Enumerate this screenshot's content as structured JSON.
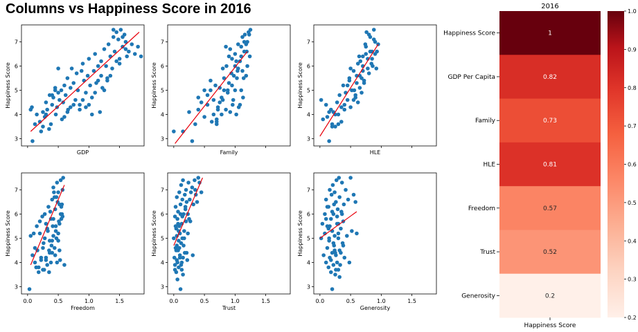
{
  "title": "Columns vs Happiness Score in 2016",
  "chart_data": [
    {
      "type": "scatter",
      "xlabel": "GDP",
      "ylabel": "Happiness Score",
      "xlim": [
        -0.1,
        1.9
      ],
      "ylim": [
        2.7,
        7.7
      ],
      "yticks": [
        3,
        4,
        5,
        6,
        7
      ],
      "xticks": [],
      "fit_line": {
        "x": [
          0.05,
          1.82
        ],
        "y": [
          3.3,
          7.4
        ]
      },
      "x": [
        0.05,
        0.07,
        0.12,
        0.08,
        0.15,
        0.2,
        0.22,
        0.25,
        0.28,
        0.3,
        0.32,
        0.35,
        0.36,
        0.38,
        0.4,
        0.42,
        0.45,
        0.46,
        0.48,
        0.5,
        0.52,
        0.55,
        0.56,
        0.58,
        0.6,
        0.62,
        0.65,
        0.66,
        0.7,
        0.72,
        0.75,
        0.78,
        0.8,
        0.82,
        0.85,
        0.88,
        0.9,
        0.92,
        0.95,
        0.98,
        1.0,
        1.02,
        1.05,
        1.08,
        1.1,
        1.12,
        1.15,
        1.18,
        1.2,
        1.22,
        1.25,
        1.28,
        1.3,
        1.32,
        1.35,
        1.38,
        1.4,
        1.42,
        1.45,
        1.48,
        1.5,
        1.52,
        1.55,
        1.58,
        1.6,
        1.62,
        1.65,
        1.7,
        1.75,
        1.8,
        1.85,
        0.6,
        0.7,
        0.9,
        1.0,
        1.1,
        1.2,
        1.3,
        0.4,
        0.5,
        0.3,
        0.65,
        0.85,
        1.05,
        1.15,
        1.25,
        1.45,
        1.35,
        0.95,
        0.75,
        1.4,
        1.5,
        1.6,
        1.55,
        0.25,
        0.45
      ],
      "y": [
        4.2,
        4.3,
        3.6,
        2.9,
        4.0,
        3.7,
        3.3,
        4.1,
        3.9,
        4.5,
        4.2,
        3.4,
        4.8,
        3.6,
        4.4,
        4.7,
        5.1,
        4.0,
        4.3,
        4.9,
        4.6,
        5.0,
        3.8,
        4.5,
        5.2,
        4.8,
        5.5,
        4.2,
        5.1,
        5.9,
        5.3,
        4.6,
        5.7,
        5.0,
        4.4,
        5.8,
        6.1,
        5.4,
        4.9,
        5.6,
        6.3,
        5.2,
        4.7,
        5.8,
        6.5,
        5.3,
        6.0,
        4.1,
        6.2,
        5.1,
        6.7,
        6.0,
        5.5,
        6.9,
        6.4,
        5.9,
        7.2,
        6.6,
        7.4,
        7.1,
        6.3,
        7.5,
        6.8,
        7.3,
        7.0,
        6.4,
        6.6,
        6.9,
        6.5,
        6.8,
        6.4,
        3.9,
        4.3,
        4.6,
        4.4,
        4.9,
        5.6,
        5.4,
        4.8,
        5.9,
        4.0,
        4.1,
        4.2,
        4.0,
        5.4,
        5.0,
        6.2,
        5.6,
        4.3,
        4.4,
        7.5,
        6.1,
        6.7,
        7.2,
        3.5,
        5.0
      ]
    },
    {
      "type": "scatter",
      "xlabel": "Family",
      "ylabel": "Happiness Score",
      "xlim": [
        -0.1,
        1.9
      ],
      "ylim": [
        2.7,
        7.7
      ],
      "yticks": [
        3,
        4,
        5,
        6,
        7
      ],
      "xticks": [],
      "fit_line": {
        "x": [
          0.02,
          1.2
        ],
        "y": [
          2.8,
          6.6
        ]
      },
      "x": [
        0.0,
        0.15,
        0.3,
        0.35,
        0.4,
        0.45,
        0.5,
        0.55,
        0.6,
        0.62,
        0.65,
        0.68,
        0.7,
        0.72,
        0.75,
        0.78,
        0.8,
        0.82,
        0.85,
        0.86,
        0.88,
        0.9,
        0.92,
        0.94,
        0.95,
        0.96,
        0.98,
        1.0,
        1.0,
        1.02,
        1.04,
        1.05,
        1.06,
        1.08,
        1.1,
        1.1,
        1.12,
        1.14,
        1.15,
        1.16,
        1.18,
        1.2,
        1.2,
        1.22,
        1.24,
        1.25,
        0.5,
        0.55,
        0.6,
        0.7,
        0.75,
        0.8,
        0.85,
        0.9,
        0.95,
        1.0,
        1.05,
        1.1,
        1.15,
        0.65,
        0.7,
        0.78,
        0.88,
        0.92,
        1.02,
        1.08,
        1.12,
        1.18,
        0.72,
        0.82,
        0.97,
        1.03,
        1.13,
        1.19,
        1.23,
        0.4,
        0.25
      ],
      "y": [
        3.3,
        3.3,
        2.9,
        3.6,
        4.2,
        4.5,
        3.9,
        4.4,
        5.0,
        3.7,
        4.6,
        5.2,
        3.6,
        4.3,
        5.1,
        4.0,
        4.6,
        5.5,
        4.2,
        6.0,
        4.9,
        5.3,
        4.1,
        5.7,
        6.3,
        4.4,
        5.6,
        5.0,
        6.5,
        4.0,
        5.8,
        6.9,
        4.3,
        6.2,
        5.0,
        6.8,
        7.2,
        5.5,
        6.6,
        7.3,
        5.6,
        7.0,
        6.0,
        7.4,
        6.4,
        7.5,
        5.0,
        4.8,
        5.4,
        3.7,
        4.5,
        5.9,
        6.8,
        6.4,
        5.2,
        6.0,
        5.9,
        6.4,
        7.0,
        4.0,
        3.8,
        4.7,
        5.0,
        6.7,
        6.2,
        4.4,
        5.8,
        6.9,
        4.2,
        5.0,
        4.6,
        5.5,
        4.7,
        6.6,
        7.3,
        4.7,
        4.1
      ]
    },
    {
      "type": "scatter",
      "xlabel": "HLE",
      "ylabel": "Happiness Score",
      "xlim": [
        -0.1,
        1.9
      ],
      "ylim": [
        2.7,
        7.7
      ],
      "yticks": [
        3,
        4,
        5,
        6,
        7
      ],
      "xticks": [],
      "fit_line": {
        "x": [
          0.0,
          0.95
        ],
        "y": [
          3.1,
          6.9
        ]
      },
      "x": [
        0.02,
        0.05,
        0.1,
        0.12,
        0.15,
        0.18,
        0.2,
        0.22,
        0.25,
        0.28,
        0.3,
        0.32,
        0.35,
        0.38,
        0.4,
        0.42,
        0.45,
        0.48,
        0.5,
        0.52,
        0.55,
        0.58,
        0.6,
        0.62,
        0.65,
        0.68,
        0.7,
        0.72,
        0.75,
        0.78,
        0.8,
        0.82,
        0.85,
        0.88,
        0.9,
        0.92,
        0.95,
        0.55,
        0.6,
        0.65,
        0.7,
        0.75,
        0.8,
        0.85,
        0.5,
        0.45,
        0.4,
        0.62,
        0.66,
        0.72,
        0.76,
        0.82,
        0.86,
        0.9,
        0.58,
        0.68,
        0.74,
        0.84,
        0.25,
        0.3,
        0.35,
        0.15,
        0.2,
        0.78,
        0.88,
        0.93,
        0.7,
        0.64,
        0.56,
        0.48
      ],
      "y": [
        4.6,
        3.8,
        4.4,
        3.9,
        2.9,
        4.2,
        3.6,
        4.1,
        3.5,
        4.5,
        4.0,
        4.8,
        3.7,
        5.2,
        4.4,
        4.9,
        4.6,
        5.5,
        4.3,
        5.0,
        5.8,
        4.7,
        5.3,
        6.1,
        5.6,
        4.9,
        6.4,
        5.4,
        6.8,
        5.9,
        7.3,
        6.6,
        6.3,
        7.5,
        7.0,
        5.9,
        6.9,
        4.6,
        5.6,
        5.1,
        6.0,
        6.5,
        5.7,
        6.6,
        5.9,
        5.2,
        4.2,
        4.5,
        6.2,
        5.3,
        7.4,
        7.2,
        6.0,
        6.5,
        4.8,
        5.5,
        6.9,
        6.1,
        4.0,
        3.6,
        4.3,
        4.1,
        3.5,
        6.3,
        7.1,
        6.6,
        5.8,
        6.4,
        5.0,
        5.4
      ]
    },
    {
      "type": "scatter",
      "xlabel": "Freedom",
      "ylabel": "Happiness Score",
      "xlim": [
        -0.1,
        1.9
      ],
      "ylim": [
        2.7,
        7.7
      ],
      "yticks": [
        3,
        4,
        5,
        6,
        7
      ],
      "xticks": [
        0.0,
        0.5,
        1.0,
        1.5
      ],
      "fit_line": {
        "x": [
          0.05,
          0.6
        ],
        "y": [
          3.9,
          7.2
        ]
      },
      "x": [
        0.03,
        0.05,
        0.08,
        0.1,
        0.12,
        0.14,
        0.15,
        0.16,
        0.18,
        0.2,
        0.22,
        0.24,
        0.25,
        0.26,
        0.28,
        0.3,
        0.32,
        0.34,
        0.35,
        0.36,
        0.38,
        0.4,
        0.4,
        0.42,
        0.42,
        0.44,
        0.45,
        0.46,
        0.48,
        0.48,
        0.5,
        0.5,
        0.52,
        0.52,
        0.54,
        0.55,
        0.56,
        0.58,
        0.6,
        0.28,
        0.3,
        0.33,
        0.37,
        0.39,
        0.41,
        0.43,
        0.45,
        0.47,
        0.49,
        0.51,
        0.53,
        0.55,
        0.57,
        0.35,
        0.38,
        0.44,
        0.46,
        0.5,
        0.54,
        0.56,
        0.25,
        0.2,
        0.18,
        0.12,
        0.32,
        0.42,
        0.47,
        0.52,
        0.57,
        0.4,
        0.36,
        0.3,
        0.27,
        0.22
      ],
      "y": [
        2.9,
        5.1,
        4.3,
        5.2,
        4.0,
        3.8,
        5.5,
        4.5,
        3.6,
        5.7,
        4.2,
        5.9,
        3.7,
        4.8,
        6.0,
        4.1,
        5.4,
        6.3,
        3.6,
        4.9,
        5.8,
        4.4,
        6.6,
        5.1,
        7.1,
        4.6,
        6.2,
        5.5,
        7.3,
        4.0,
        6.9,
        5.2,
        6.4,
        4.5,
        7.4,
        5.8,
        6.0,
        7.5,
        3.9,
        5.0,
        4.2,
        5.3,
        6.1,
        4.7,
        5.5,
        6.9,
        4.3,
        5.0,
        6.5,
        5.7,
        4.1,
        6.3,
        5.9,
        4.5,
        4.0,
        6.7,
        5.3,
        4.9,
        6.0,
        6.4,
        4.6,
        5.2,
        3.8,
        4.6,
        3.9,
        5.8,
        6.7,
        5.6,
        7.0,
        4.9,
        4.4,
        5.6,
        3.7,
        4.1
      ]
    },
    {
      "type": "scatter",
      "xlabel": "Trust",
      "ylabel": "Happiness Score",
      "xlim": [
        -0.1,
        1.9
      ],
      "ylim": [
        2.7,
        7.7
      ],
      "yticks": [
        3,
        4,
        5,
        6,
        7
      ],
      "xticks": [
        0.0,
        0.5,
        1.0,
        1.5
      ],
      "fit_line": {
        "x": [
          0.0,
          0.47
        ],
        "y": [
          4.7,
          7.5
        ]
      },
      "x": [
        0.0,
        0.01,
        0.02,
        0.02,
        0.03,
        0.03,
        0.04,
        0.04,
        0.05,
        0.05,
        0.05,
        0.06,
        0.06,
        0.07,
        0.07,
        0.08,
        0.08,
        0.09,
        0.09,
        0.1,
        0.1,
        0.11,
        0.11,
        0.12,
        0.12,
        0.13,
        0.13,
        0.14,
        0.14,
        0.15,
        0.15,
        0.16,
        0.16,
        0.17,
        0.18,
        0.18,
        0.19,
        0.2,
        0.2,
        0.21,
        0.22,
        0.23,
        0.24,
        0.25,
        0.26,
        0.28,
        0.3,
        0.32,
        0.34,
        0.36,
        0.38,
        0.4,
        0.42,
        0.45,
        0.02,
        0.04,
        0.06,
        0.08,
        0.1,
        0.12,
        0.14,
        0.03,
        0.05,
        0.07,
        0.09,
        0.11,
        0.13,
        0.15,
        0.17,
        0.19,
        0.21,
        0.23,
        0.27,
        0.31,
        0.35
      ],
      "y": [
        5.0,
        4.2,
        5.9,
        3.9,
        6.3,
        4.6,
        5.4,
        3.6,
        6.7,
        4.1,
        5.1,
        3.3,
        5.8,
        4.5,
        6.1,
        4.9,
        3.8,
        5.5,
        6.9,
        4.3,
        5.2,
        2.9,
        6.4,
        4.8,
        7.2,
        5.6,
        4.0,
        6.6,
        5.0,
        7.4,
        3.5,
        6.0,
        4.7,
        5.3,
        6.8,
        4.4,
        6.2,
        5.7,
        7.0,
        6.5,
        4.1,
        6.0,
        7.3,
        5.8,
        6.6,
        6.9,
        7.1,
        6.4,
        7.4,
        6.8,
        6.5,
        7.5,
        7.3,
        6.9,
        3.7,
        4.5,
        4.0,
        5.3,
        4.2,
        3.9,
        5.9,
        5.5,
        4.7,
        5.6,
        4.6,
        6.0,
        3.7,
        4.2,
        5.0,
        6.3,
        4.4,
        5.2,
        5.7,
        4.3,
        7.0
      ]
    },
    {
      "type": "scatter",
      "xlabel": "Generosity",
      "ylabel": "Happiness Score",
      "xlim": [
        -0.1,
        1.9
      ],
      "ylim": [
        2.7,
        7.7
      ],
      "yticks": [
        3,
        4,
        5,
        6,
        7
      ],
      "xticks": [
        0.0,
        0.5,
        1.0,
        1.5
      ],
      "fit_line": {
        "x": [
          0.0,
          0.6
        ],
        "y": [
          5.0,
          6.1
        ]
      },
      "x": [
        0.02,
        0.04,
        0.06,
        0.08,
        0.08,
        0.1,
        0.1,
        0.12,
        0.12,
        0.14,
        0.14,
        0.15,
        0.16,
        0.16,
        0.18,
        0.18,
        0.19,
        0.2,
        0.2,
        0.21,
        0.22,
        0.22,
        0.23,
        0.24,
        0.24,
        0.25,
        0.26,
        0.26,
        0.27,
        0.28,
        0.28,
        0.29,
        0.3,
        0.3,
        0.31,
        0.32,
        0.32,
        0.33,
        0.34,
        0.35,
        0.36,
        0.37,
        0.38,
        0.39,
        0.4,
        0.42,
        0.44,
        0.46,
        0.48,
        0.5,
        0.52,
        0.55,
        0.58,
        0.6,
        0.1,
        0.14,
        0.18,
        0.22,
        0.26,
        0.3,
        0.34,
        0.38,
        0.12,
        0.16,
        0.2,
        0.24,
        0.28,
        0.32,
        0.36,
        0.2,
        0.25,
        0.3,
        0.15,
        0.23
      ],
      "y": [
        5.0,
        5.6,
        4.3,
        6.0,
        5.2,
        4.0,
        6.6,
        4.6,
        5.5,
        3.8,
        6.3,
        4.9,
        7.0,
        4.2,
        5.8,
        3.6,
        6.8,
        4.4,
        5.3,
        7.2,
        3.9,
        6.0,
        4.7,
        5.1,
        6.9,
        3.5,
        4.3,
        6.5,
        7.4,
        4.0,
        5.6,
        6.2,
        3.7,
        5.0,
        7.5,
        4.5,
        6.7,
        3.9,
        5.4,
        6.1,
        7.3,
        4.8,
        5.7,
        6.4,
        4.2,
        7.0,
        5.1,
        6.6,
        4.0,
        7.5,
        5.3,
        6.8,
        6.5,
        5.2,
        5.8,
        5.4,
        4.1,
        4.8,
        3.7,
        5.2,
        4.4,
        4.7,
        6.3,
        5.5,
        6.1,
        4.5,
        5.9,
        3.4,
        6.0,
        2.9,
        4.4,
        5.6,
        5.0,
        6.4
      ]
    },
    {
      "type": "heatmap",
      "title": "2016",
      "xlabel": "Happiness Score",
      "rows": [
        "Happiness Score",
        "GDP Per Capita",
        "Family",
        "HLE",
        "Freedom",
        "Trust",
        "Generosity"
      ],
      "values": [
        1,
        0.82,
        0.73,
        0.81,
        0.57,
        0.52,
        0.2
      ],
      "labels": [
        "1",
        "0.82",
        "0.73",
        "0.81",
        "0.57",
        "0.52",
        "0.2"
      ],
      "colorbar_ticks": [
        "0.2",
        "0.3",
        "0.4",
        "0.5",
        "0.6",
        "0.7",
        "0.8",
        "0.9",
        "1.0"
      ],
      "colorbar_range": [
        0.2,
        1.0
      ],
      "colormap": "Reds"
    }
  ]
}
